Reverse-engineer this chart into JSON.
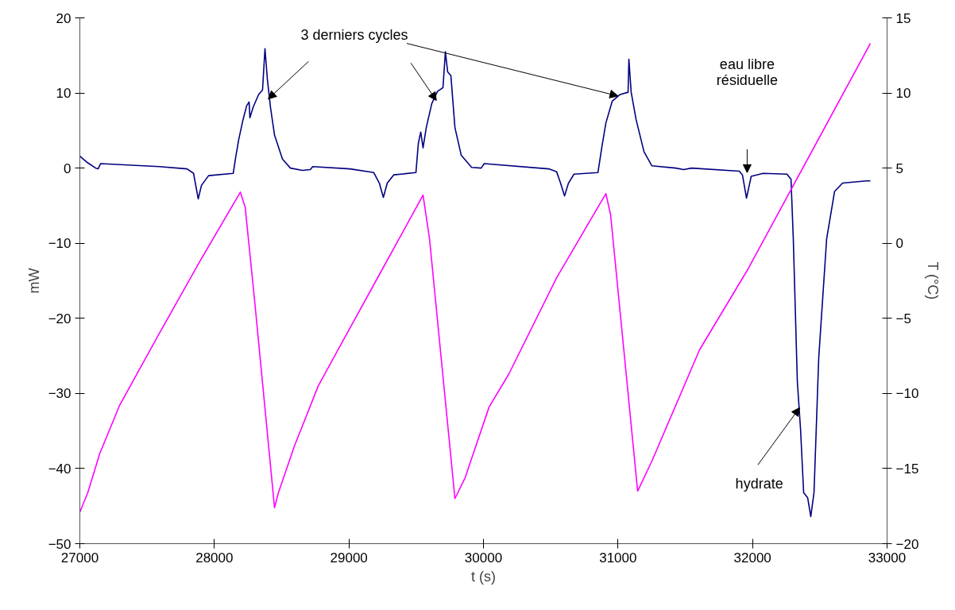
{
  "chart_data": {
    "type": "line",
    "xlabel": "t (s)",
    "ylabel": "mW",
    "y2label": "T (°C)",
    "xlim": [
      27000,
      33000
    ],
    "xticks": [
      27000,
      28000,
      29000,
      30000,
      31000,
      32000,
      33000
    ],
    "ylim": [
      -50,
      20
    ],
    "yticks": [
      -50,
      -40,
      -30,
      -20,
      -10,
      0,
      10,
      20
    ],
    "y2lim": [
      -20,
      15
    ],
    "y2ticks": [
      -20,
      -15,
      -10,
      -5,
      0,
      5,
      10,
      15
    ],
    "grid": false,
    "marker": "none",
    "line_style": "solid",
    "annotations": [
      {
        "text": "3 derniers cycles",
        "x": 28400,
        "y": 9.2
      },
      "eau libre résiduelle",
      {
        "text": "hydrate",
        "x": 32350,
        "y": -31.9
      }
    ],
    "series": [
      {
        "color": "#000080",
        "x": [
          27000,
          27059,
          27118,
          27136,
          27154,
          27591,
          27797,
          27845,
          27880,
          27904,
          27957,
          28140,
          28158,
          28181,
          28211,
          28240,
          28258,
          28264,
          28288,
          28329,
          28358,
          28376,
          28394,
          28417,
          28447,
          28506,
          28565,
          28654,
          28713,
          28731,
          29008,
          29185,
          29226,
          29256,
          29285,
          29333,
          29498,
          29516,
          29534,
          29551,
          29575,
          29616,
          29658,
          29699,
          29717,
          29734,
          29758,
          29788,
          29835,
          29912,
          29983,
          30006,
          30485,
          30544,
          30573,
          30603,
          30632,
          30673,
          30851,
          30880,
          30910,
          30957,
          31016,
          31075,
          31081,
          31098,
          31134,
          31193,
          31252,
          31429,
          31488,
          31547,
          31901,
          31925,
          31955,
          31990,
          32079,
          32256,
          32286,
          32303,
          32333,
          32357,
          32380,
          32410,
          32433,
          32457,
          32492,
          32551,
          32610,
          32669,
          32846,
          32876
        ],
        "values": [
          1.6,
          0.7,
          0.0,
          -0.1,
          0.6,
          0.2,
          -0.1,
          -0.7,
          -4.1,
          -2.3,
          -1.0,
          -0.7,
          1.4,
          3.8,
          6.3,
          8.3,
          8.8,
          6.7,
          8.1,
          9.8,
          10.4,
          15.9,
          11.8,
          8.1,
          4.4,
          1.2,
          0.0,
          -0.3,
          -0.2,
          0.2,
          -0.1,
          -0.6,
          -2.0,
          -3.9,
          -2.0,
          -0.9,
          -0.6,
          3.3,
          4.8,
          2.7,
          5.4,
          8.6,
          10.2,
          10.7,
          15.5,
          12.8,
          12.3,
          5.4,
          1.7,
          0.1,
          0.0,
          0.6,
          -0.1,
          -0.5,
          -2.0,
          -3.7,
          -2.0,
          -0.8,
          -0.6,
          2.8,
          6.0,
          8.9,
          9.8,
          10.1,
          14.5,
          10.1,
          6.5,
          2.2,
          0.3,
          0.0,
          -0.2,
          0.0,
          -0.4,
          -0.9,
          -4.0,
          -1.1,
          -0.7,
          -0.8,
          -1.5,
          -9.4,
          -28.4,
          -34.8,
          -43.2,
          -43.9,
          -46.4,
          -43.2,
          -25.3,
          -9.4,
          -3.1,
          -2.0,
          -1.7,
          -1.7
        ]
      },
      {
        "color": "#ff00ff",
        "axis": "y2",
        "x": [
          27000,
          27059,
          27148,
          27295,
          27591,
          27886,
          28193,
          28229,
          28300,
          28447,
          28476,
          28595,
          28772,
          28949,
          29244,
          29551,
          29599,
          29788,
          29864,
          30042,
          30189,
          30544,
          30910,
          30945,
          31146,
          31252,
          31606,
          31961,
          32876
        ],
        "values": [
          -17.9,
          -16.6,
          -14.0,
          -10.8,
          -6.0,
          -1.3,
          3.4,
          2.4,
          -3.9,
          -17.6,
          -16.6,
          -13.5,
          -9.5,
          -6.6,
          -1.8,
          3.2,
          0.3,
          -17.0,
          -15.6,
          -10.9,
          -8.7,
          -2.3,
          3.3,
          1.9,
          -16.5,
          -14.5,
          -7.1,
          -1.8,
          13.3
        ]
      }
    ]
  }
}
